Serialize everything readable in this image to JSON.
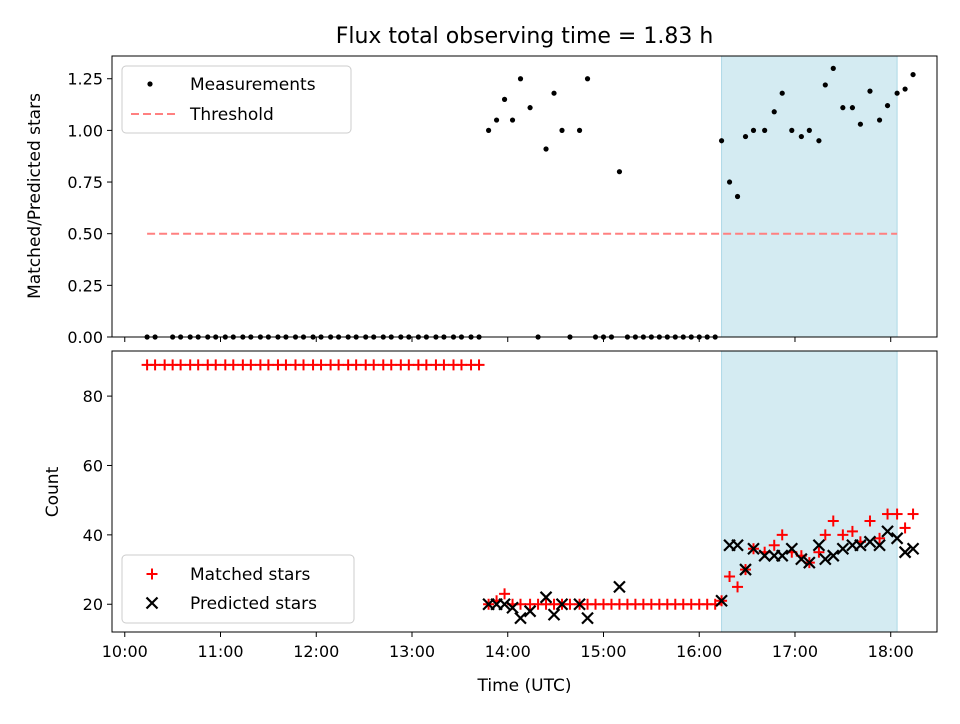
{
  "figure": {
    "title": "Flux total observing time = 1.83 h"
  },
  "chart_data": [
    {
      "type": "scatter",
      "panel": "top",
      "title": "Flux total observing time = 1.83 h",
      "xlabel": "",
      "ylabel": "Matched/Predicted stars",
      "xlim": [
        "09:52",
        "18:29"
      ],
      "ylim": [
        0,
        1.36
      ],
      "yticks": [
        "0.00",
        "0.25",
        "0.50",
        "0.75",
        "1.00",
        "1.25"
      ],
      "ytick_values": [
        0,
        0.25,
        0.5,
        0.75,
        1.0,
        1.25
      ],
      "highlight_span": {
        "start": "16:14",
        "end": "18:04",
        "color": "#add8e6"
      },
      "legend": {
        "position": "upper left",
        "entries": [
          "Measurements",
          "Threshold"
        ]
      },
      "series": [
        {
          "name": "Measurements",
          "kind": "scatter",
          "color": "#000000",
          "points": [
            [
              "10:14",
              0
            ],
            [
              "10:19",
              0
            ],
            [
              "10:30",
              0
            ],
            [
              "10:35",
              0
            ],
            [
              "10:41",
              0
            ],
            [
              "10:46",
              0
            ],
            [
              "10:52",
              0
            ],
            [
              "10:57",
              0
            ],
            [
              "11:03",
              0
            ],
            [
              "11:08",
              0
            ],
            [
              "11:14",
              0
            ],
            [
              "11:19",
              0
            ],
            [
              "11:25",
              0
            ],
            [
              "11:30",
              0
            ],
            [
              "11:36",
              0
            ],
            [
              "11:41",
              0
            ],
            [
              "11:47",
              0
            ],
            [
              "11:52",
              0
            ],
            [
              "11:58",
              0
            ],
            [
              "12:03",
              0
            ],
            [
              "12:09",
              0
            ],
            [
              "12:14",
              0
            ],
            [
              "12:20",
              0
            ],
            [
              "12:25",
              0
            ],
            [
              "12:31",
              0
            ],
            [
              "12:36",
              0
            ],
            [
              "12:42",
              0
            ],
            [
              "12:47",
              0
            ],
            [
              "12:53",
              0
            ],
            [
              "12:58",
              0
            ],
            [
              "13:04",
              0
            ],
            [
              "13:09",
              0
            ],
            [
              "13:15",
              0
            ],
            [
              "13:20",
              0
            ],
            [
              "13:26",
              0
            ],
            [
              "13:31",
              0
            ],
            [
              "13:37",
              0
            ],
            [
              "13:42",
              0
            ],
            [
              "13:48",
              1.0
            ],
            [
              "13:53",
              1.05
            ],
            [
              "13:58",
              1.15
            ],
            [
              "14:03",
              1.05
            ],
            [
              "14:08",
              1.25
            ],
            [
              "14:14",
              1.11
            ],
            [
              "14:19",
              0
            ],
            [
              "14:24",
              0.91
            ],
            [
              "14:29",
              1.18
            ],
            [
              "14:34",
              1.0
            ],
            [
              "14:39",
              0
            ],
            [
              "14:45",
              1.0
            ],
            [
              "14:50",
              1.25
            ],
            [
              "14:55",
              0
            ],
            [
              "15:00",
              0
            ],
            [
              "15:05",
              0
            ],
            [
              "15:10",
              0.8
            ],
            [
              "15:15",
              0
            ],
            [
              "15:20",
              0
            ],
            [
              "15:25",
              0
            ],
            [
              "15:30",
              0
            ],
            [
              "15:35",
              0
            ],
            [
              "15:40",
              0
            ],
            [
              "15:45",
              0
            ],
            [
              "15:50",
              0
            ],
            [
              "15:55",
              0
            ],
            [
              "16:00",
              0
            ],
            [
              "16:05",
              0
            ],
            [
              "16:10",
              0
            ],
            [
              "16:14",
              0.95
            ],
            [
              "16:19",
              0.75
            ],
            [
              "16:24",
              0.68
            ],
            [
              "16:29",
              0.97
            ],
            [
              "16:34",
              1.0
            ],
            [
              "16:41",
              1.0
            ],
            [
              "16:47",
              1.09
            ],
            [
              "16:52",
              1.18
            ],
            [
              "16:58",
              1.0
            ],
            [
              "17:04",
              0.97
            ],
            [
              "17:09",
              1.0
            ],
            [
              "17:15",
              0.95
            ],
            [
              "17:19",
              1.22
            ],
            [
              "17:24",
              1.3
            ],
            [
              "17:30",
              1.11
            ],
            [
              "17:36",
              1.11
            ],
            [
              "17:41",
              1.03
            ],
            [
              "17:47",
              1.19
            ],
            [
              "17:53",
              1.05
            ],
            [
              "17:58",
              1.12
            ],
            [
              "18:04",
              1.18
            ],
            [
              "18:09",
              1.2
            ],
            [
              "18:14",
              1.27
            ]
          ]
        },
        {
          "name": "Threshold",
          "kind": "dashed-line",
          "color": "#ff8080",
          "x": [
            "10:14",
            "18:04"
          ],
          "y": [
            0.5,
            0.5
          ]
        }
      ]
    },
    {
      "type": "scatter",
      "panel": "bottom",
      "xlabel": "Time (UTC)",
      "ylabel": "Count",
      "xlim": [
        "09:52",
        "18:29"
      ],
      "ylim": [
        12,
        93
      ],
      "xticks": [
        "10:00",
        "11:00",
        "12:00",
        "13:00",
        "14:00",
        "15:00",
        "16:00",
        "17:00",
        "18:00"
      ],
      "yticks": [
        "20",
        "40",
        "60",
        "80"
      ],
      "ytick_values": [
        20,
        40,
        60,
        80
      ],
      "highlight_span": {
        "start": "16:14",
        "end": "18:04",
        "color": "#add8e6"
      },
      "legend": {
        "position": "lower left",
        "entries": [
          "Matched stars",
          "Predicted stars"
        ]
      },
      "series": [
        {
          "name": "Matched stars",
          "marker": "plus",
          "color": "#ff0000",
          "points": [
            [
              "10:14",
              89
            ],
            [
              "10:19",
              89
            ],
            [
              "10:25",
              89
            ],
            [
              "10:30",
              89
            ],
            [
              "10:35",
              89
            ],
            [
              "10:41",
              89
            ],
            [
              "10:46",
              89
            ],
            [
              "10:52",
              89
            ],
            [
              "10:57",
              89
            ],
            [
              "11:03",
              89
            ],
            [
              "11:08",
              89
            ],
            [
              "11:14",
              89
            ],
            [
              "11:19",
              89
            ],
            [
              "11:25",
              89
            ],
            [
              "11:30",
              89
            ],
            [
              "11:36",
              89
            ],
            [
              "11:41",
              89
            ],
            [
              "11:47",
              89
            ],
            [
              "11:52",
              89
            ],
            [
              "11:58",
              89
            ],
            [
              "12:03",
              89
            ],
            [
              "12:09",
              89
            ],
            [
              "12:14",
              89
            ],
            [
              "12:20",
              89
            ],
            [
              "12:25",
              89
            ],
            [
              "12:31",
              89
            ],
            [
              "12:36",
              89
            ],
            [
              "12:42",
              89
            ],
            [
              "12:47",
              89
            ],
            [
              "12:53",
              89
            ],
            [
              "12:58",
              89
            ],
            [
              "13:04",
              89
            ],
            [
              "13:09",
              89
            ],
            [
              "13:15",
              89
            ],
            [
              "13:20",
              89
            ],
            [
              "13:26",
              89
            ],
            [
              "13:31",
              89
            ],
            [
              "13:37",
              89
            ],
            [
              "13:42",
              89
            ],
            [
              "13:48",
              20
            ],
            [
              "13:53",
              21
            ],
            [
              "13:58",
              23
            ],
            [
              "14:03",
              20
            ],
            [
              "14:08",
              20
            ],
            [
              "14:14",
              20
            ],
            [
              "14:19",
              20
            ],
            [
              "14:24",
              20
            ],
            [
              "14:29",
              20
            ],
            [
              "14:34",
              20
            ],
            [
              "14:39",
              20
            ],
            [
              "14:45",
              20
            ],
            [
              "14:50",
              20
            ],
            [
              "14:55",
              20
            ],
            [
              "15:00",
              20
            ],
            [
              "15:05",
              20
            ],
            [
              "15:10",
              20
            ],
            [
              "15:15",
              20
            ],
            [
              "15:20",
              20
            ],
            [
              "15:25",
              20
            ],
            [
              "15:30",
              20
            ],
            [
              "15:35",
              20
            ],
            [
              "15:40",
              20
            ],
            [
              "15:45",
              20
            ],
            [
              "15:50",
              20
            ],
            [
              "15:55",
              20
            ],
            [
              "16:00",
              20
            ],
            [
              "16:05",
              20
            ],
            [
              "16:10",
              20
            ],
            [
              "16:14",
              21
            ],
            [
              "16:19",
              28
            ],
            [
              "16:24",
              25
            ],
            [
              "16:29",
              30
            ],
            [
              "16:34",
              36
            ],
            [
              "16:41",
              35
            ],
            [
              "16:47",
              37
            ],
            [
              "16:52",
              40
            ],
            [
              "16:58",
              35
            ],
            [
              "17:04",
              34
            ],
            [
              "17:09",
              32
            ],
            [
              "17:15",
              35
            ],
            [
              "17:19",
              40
            ],
            [
              "17:24",
              44
            ],
            [
              "17:30",
              40
            ],
            [
              "17:36",
              41
            ],
            [
              "17:41",
              38
            ],
            [
              "17:47",
              44
            ],
            [
              "17:53",
              39
            ],
            [
              "17:58",
              46
            ],
            [
              "18:04",
              46
            ],
            [
              "18:09",
              42
            ],
            [
              "18:14",
              46
            ]
          ]
        },
        {
          "name": "Predicted stars",
          "marker": "x",
          "color": "#000000",
          "points": [
            [
              "13:48",
              20
            ],
            [
              "13:53",
              20
            ],
            [
              "13:58",
              20
            ],
            [
              "14:03",
              19
            ],
            [
              "14:08",
              16
            ],
            [
              "14:14",
              18
            ],
            [
              "14:24",
              22
            ],
            [
              "14:29",
              17
            ],
            [
              "14:34",
              20
            ],
            [
              "14:45",
              20
            ],
            [
              "14:50",
              16
            ],
            [
              "15:10",
              25
            ],
            [
              "16:14",
              21
            ],
            [
              "16:19",
              37
            ],
            [
              "16:24",
              37
            ],
            [
              "16:29",
              30
            ],
            [
              "16:34",
              36
            ],
            [
              "16:41",
              34
            ],
            [
              "16:47",
              34
            ],
            [
              "16:52",
              34
            ],
            [
              "16:58",
              36
            ],
            [
              "17:04",
              33
            ],
            [
              "17:09",
              32
            ],
            [
              "17:15",
              37
            ],
            [
              "17:19",
              33
            ],
            [
              "17:24",
              34
            ],
            [
              "17:30",
              36
            ],
            [
              "17:36",
              37
            ],
            [
              "17:41",
              37
            ],
            [
              "17:47",
              38
            ],
            [
              "17:53",
              37
            ],
            [
              "17:58",
              41
            ],
            [
              "18:04",
              39
            ],
            [
              "18:09",
              35
            ],
            [
              "18:14",
              36
            ]
          ]
        }
      ]
    }
  ]
}
